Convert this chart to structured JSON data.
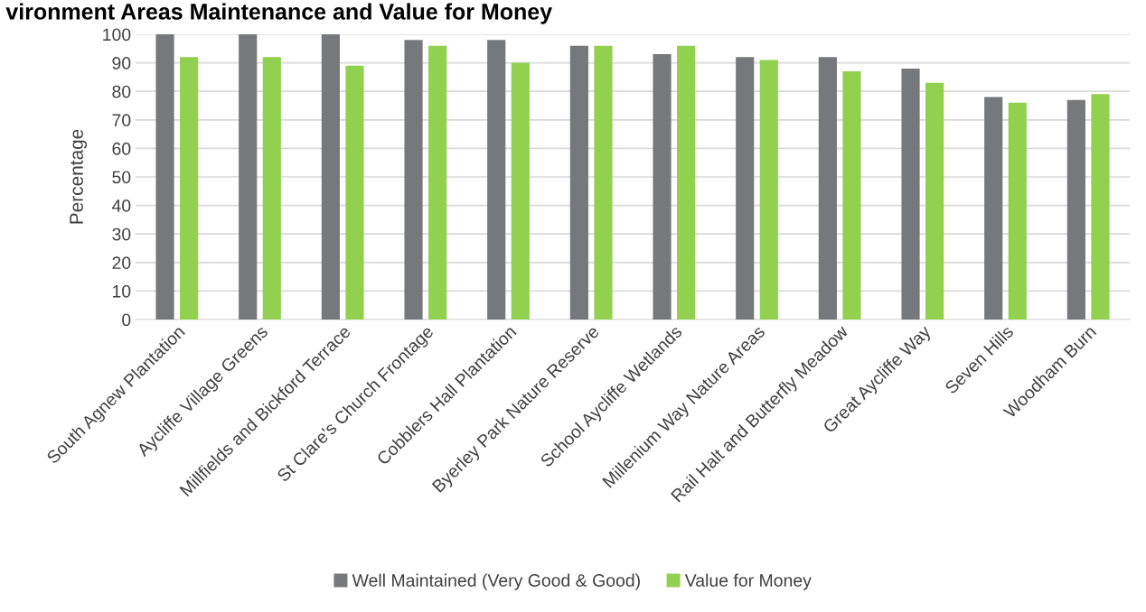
{
  "chart_data": {
    "type": "bar",
    "title": "vironment Areas Maintenance and Value for Money",
    "ylabel": "Percentage",
    "categories": [
      "South Agnew Plantation",
      "Aycliffe Village Greens",
      "Millfields and Bickford Terrace",
      "St Clare's Church Frontage",
      "Cobblers Hall Plantation",
      "Byerley Park Nature Reserve",
      "School Aycliffe Wetlands",
      "Millenium Way Nature Areas",
      "Rail Halt and Butterfly Meadow",
      "Great Aycliffe Way",
      "Seven Hills",
      "Woodham Burn"
    ],
    "series": [
      {
        "name": "Well Maintained (Very Good & Good)",
        "color": "#77787b",
        "values": [
          100,
          100,
          100,
          98,
          98,
          96,
          93,
          92,
          92,
          88,
          78,
          77
        ]
      },
      {
        "name": "Value for Money",
        "color": "#92d050",
        "values": [
          92,
          92,
          89,
          96,
          90,
          96,
          96,
          91,
          87,
          83,
          76,
          79
        ]
      }
    ],
    "ylim": [
      0,
      100
    ],
    "yticks": [
      0,
      10,
      20,
      30,
      40,
      50,
      60,
      70,
      80,
      90,
      100
    ],
    "grid": "y",
    "legend": "bottom"
  }
}
